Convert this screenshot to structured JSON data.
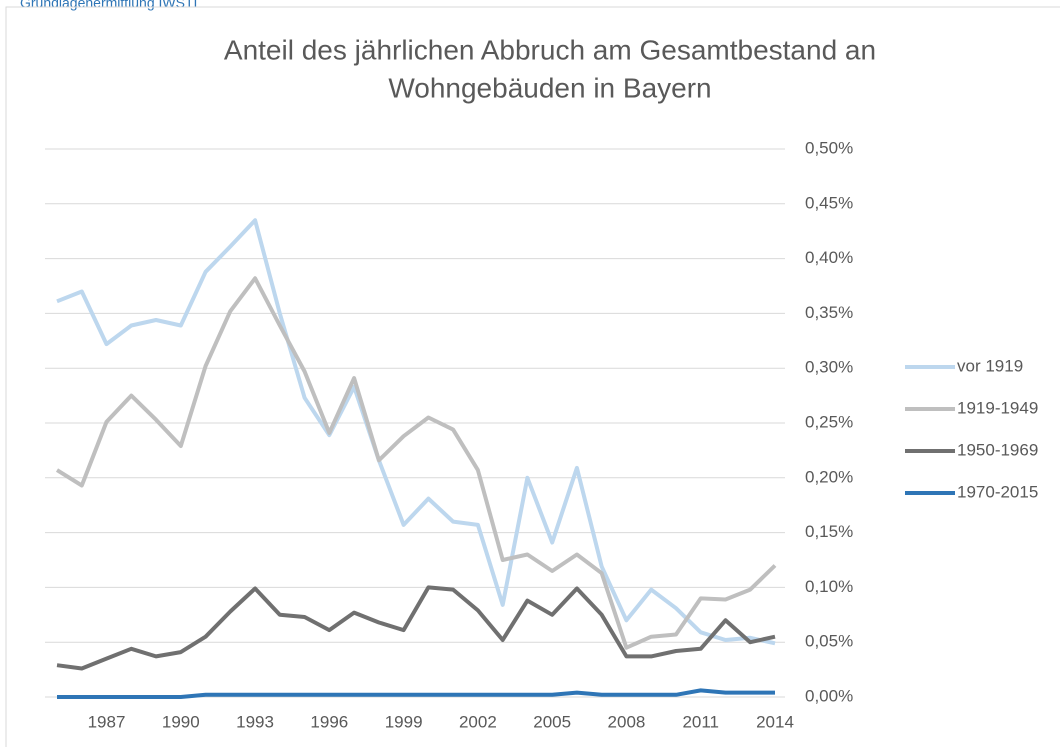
{
  "note": "Grundlagenermittlung IWSTI",
  "chart_data": {
    "type": "line",
    "title": [
      "Anteil des jährlichen Abbruch am Gesamtbestand an",
      "Wohngebäuden in Bayern"
    ],
    "categories": [
      null,
      null,
      "1987",
      null,
      null,
      "1990",
      null,
      null,
      "1993",
      null,
      null,
      "1996",
      null,
      null,
      "1999",
      null,
      null,
      "2002",
      null,
      null,
      "2005",
      null,
      null,
      "2008",
      null,
      null,
      "2011",
      null,
      null,
      "2014"
    ],
    "series": [
      {
        "name": "vor 1919",
        "color": "#bdd7ee",
        "values": [
          0.361,
          0.37,
          0.322,
          0.339,
          0.344,
          0.339,
          0.388,
          0.411,
          0.435,
          0.35,
          0.273,
          0.239,
          0.283,
          0.216,
          0.157,
          0.181,
          0.16,
          0.157,
          0.084,
          0.2,
          0.141,
          0.209,
          0.119,
          0.07,
          0.098,
          0.081,
          0.059,
          0.052,
          0.054,
          0.049
        ]
      },
      {
        "name": "1919-1949",
        "color": "#bfbfbf",
        "values": [
          0.207,
          0.193,
          0.251,
          0.275,
          0.253,
          0.229,
          0.302,
          0.352,
          0.382,
          0.339,
          0.297,
          0.241,
          0.291,
          0.216,
          0.238,
          0.255,
          0.244,
          0.207,
          0.125,
          0.13,
          0.115,
          0.13,
          0.113,
          0.045,
          0.055,
          0.057,
          0.09,
          0.089,
          0.098,
          0.12
        ]
      },
      {
        "name": "1950-1969",
        "color": "#707070",
        "values": [
          0.029,
          0.026,
          0.035,
          0.044,
          0.037,
          0.041,
          0.055,
          0.078,
          0.099,
          0.075,
          0.073,
          0.061,
          0.077,
          0.068,
          0.061,
          0.1,
          0.098,
          0.079,
          0.052,
          0.088,
          0.075,
          0.099,
          0.075,
          0.037,
          0.037,
          0.042,
          0.044,
          0.07,
          0.05,
          0.055
        ]
      },
      {
        "name": "1970-2015",
        "color": "#2e75b6",
        "values": [
          0.0,
          0.0,
          0.0,
          0.0,
          0.0,
          0.0,
          0.002,
          0.002,
          0.002,
          0.002,
          0.002,
          0.002,
          0.002,
          0.002,
          0.002,
          0.002,
          0.002,
          0.002,
          0.002,
          0.002,
          0.002,
          0.004,
          0.002,
          0.002,
          0.002,
          0.002,
          0.006,
          0.004,
          0.004,
          0.004
        ]
      }
    ],
    "ylim": [
      0,
      0.5
    ],
    "yticks": [
      {
        "value": 0,
        "label": "0,00%"
      },
      {
        "value": 0.05,
        "label": "0,05%"
      },
      {
        "value": 0.1,
        "label": "0,10%"
      },
      {
        "value": 0.15,
        "label": "0,15%"
      },
      {
        "value": 0.2,
        "label": "0,20%"
      },
      {
        "value": 0.25,
        "label": "0,25%"
      },
      {
        "value": 0.3,
        "label": "0,30%"
      },
      {
        "value": 0.35,
        "label": "0,35%"
      },
      {
        "value": 0.4,
        "label": "0,40%"
      },
      {
        "value": 0.45,
        "label": "0,45%"
      },
      {
        "value": 0.5,
        "label": "0,50%"
      }
    ],
    "grid": true,
    "legend": "right"
  }
}
